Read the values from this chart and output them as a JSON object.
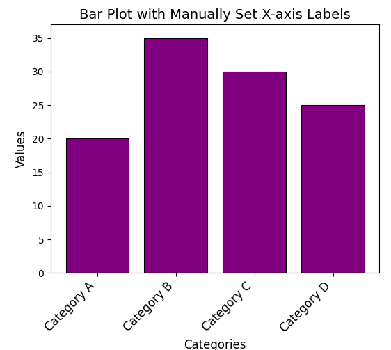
{
  "categories": [
    "Category A",
    "Category B",
    "Category C",
    "Category D"
  ],
  "values": [
    20,
    35,
    30,
    25
  ],
  "bar_color": "#800080",
  "title": "Bar Plot with Manually Set X-axis Labels",
  "xlabel": "Categories",
  "ylabel": "Values",
  "ylim": [
    0,
    37
  ],
  "title_fontsize": 14,
  "label_fontsize": 12,
  "tick_fontsize": 12,
  "xtick_rotation": 45
}
